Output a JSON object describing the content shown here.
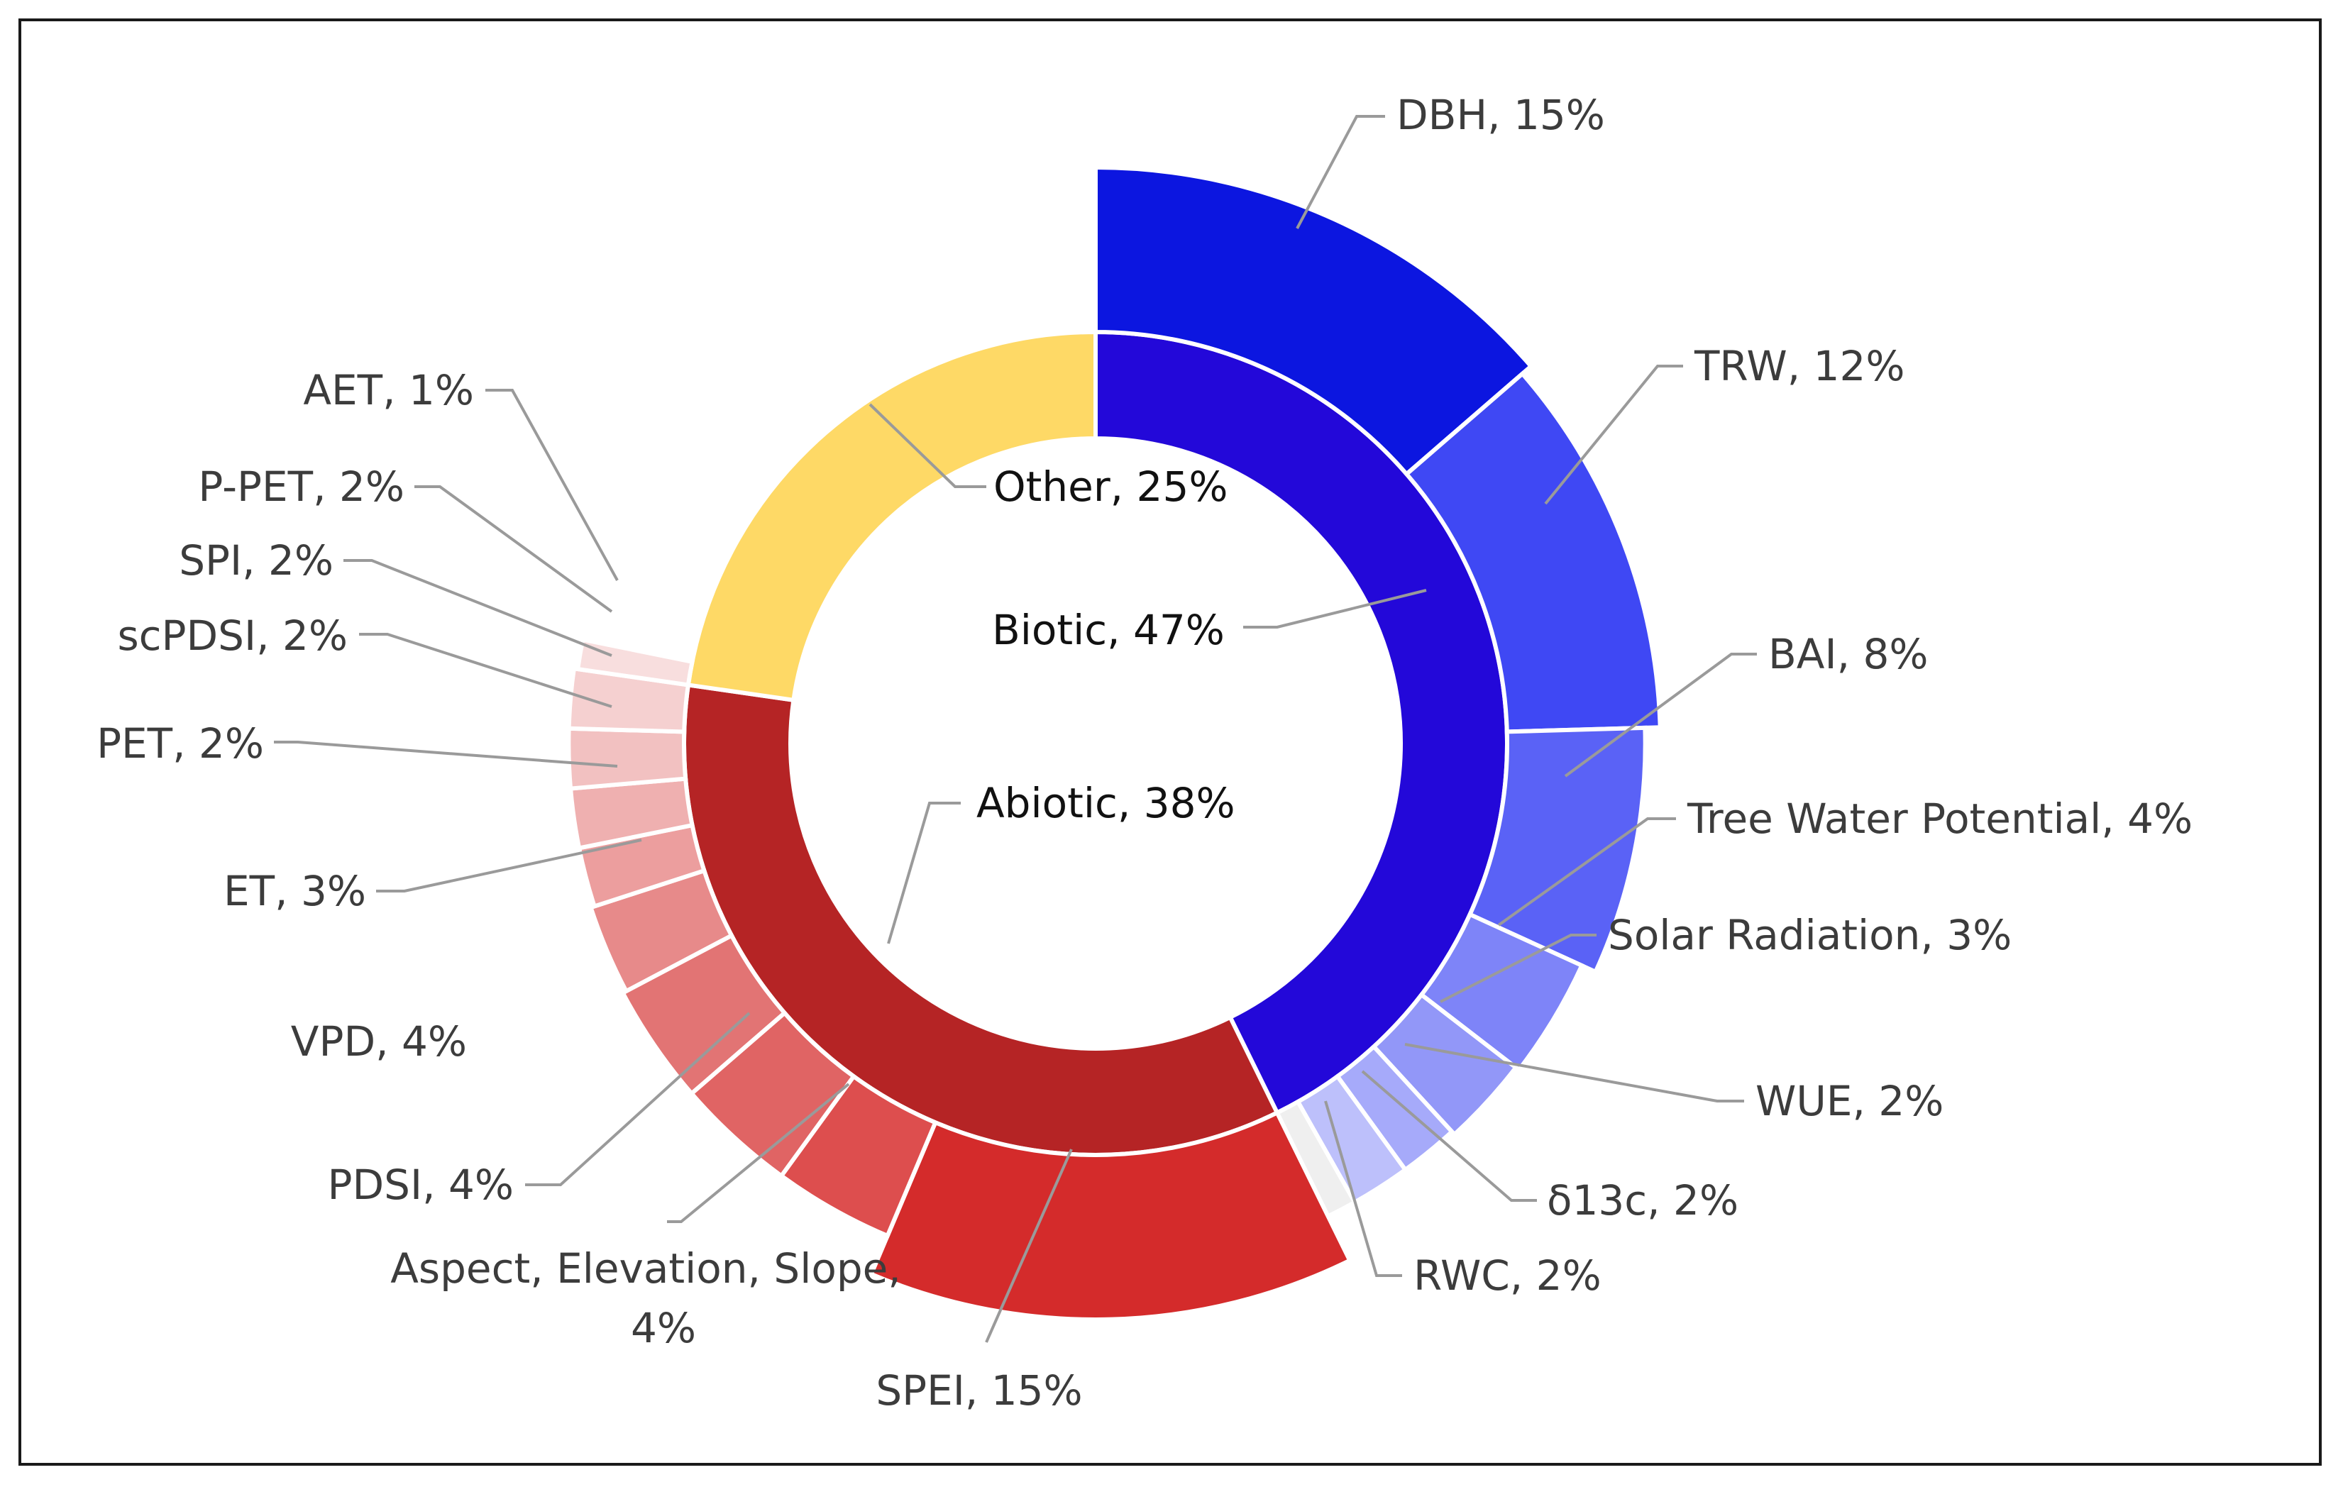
{
  "chart_data": {
    "type": "sunburst",
    "title": "",
    "unit": "%",
    "inner_ring": [
      {
        "key": "biotic",
        "name": "Biotic",
        "value": 47,
        "color": "#2308d9"
      },
      {
        "key": "abiotic",
        "name": "Abiotic",
        "value": 38,
        "color": "#b52425"
      },
      {
        "key": "other",
        "name": "Other",
        "value": 25,
        "color": "#fed966"
      }
    ],
    "outer_ring": [
      {
        "key": "dbh",
        "name": "DBH",
        "value": 15,
        "parent": "Biotic",
        "color": "#0c16e0"
      },
      {
        "key": "trw",
        "name": "TRW",
        "value": 12,
        "parent": "Biotic",
        "color": "#3f48f4"
      },
      {
        "key": "bai",
        "name": "BAI",
        "value": 8,
        "parent": "Biotic",
        "color": "#5a62f6"
      },
      {
        "key": "tree-water-potential",
        "name": "Tree Water Potential",
        "value": 4,
        "parent": "Biotic",
        "color": "#7e84f8"
      },
      {
        "key": "solar-radiation",
        "name": "Solar Radiation",
        "value": 3,
        "parent": "Biotic",
        "color": "#9297f8"
      },
      {
        "key": "wue",
        "name": "WUE",
        "value": 2,
        "parent": "Biotic",
        "color": "#a6aafa"
      },
      {
        "key": "d13c",
        "name": "δ13c",
        "value": 2,
        "parent": "Biotic",
        "color": "#bdc0fb"
      },
      {
        "key": "rwc",
        "name": "RWC",
        "value": 2,
        "parent": "Biotic",
        "color": "#efefef"
      },
      {
        "key": "spei",
        "name": "SPEI",
        "value": 15,
        "parent": "Abiotic",
        "color": "#d42b2b"
      },
      {
        "key": "aspect-elevation-slope",
        "name": "Aspect, Elevation, Slope,",
        "name2": "4%",
        "value": 4,
        "parent": "Abiotic",
        "color": "#dd4e4e"
      },
      {
        "key": "pdsi",
        "name": "PDSI",
        "value": 4,
        "parent": "Abiotic",
        "color": "#e06464"
      },
      {
        "key": "vpd",
        "name": "VPD",
        "value": 4,
        "parent": "Abiotic",
        "color": "#e27474"
      },
      {
        "key": "et",
        "name": "ET",
        "value": 3,
        "parent": "Abiotic",
        "color": "#e78a8a"
      },
      {
        "key": "pet",
        "name": "PET",
        "value": 2,
        "parent": "Abiotic",
        "color": "#ec9e9e"
      },
      {
        "key": "scpdsi",
        "name": "scPDSI",
        "value": 2,
        "parent": "Abiotic",
        "color": "#efb0b0"
      },
      {
        "key": "spi",
        "name": "SPI",
        "value": 2,
        "parent": "Abiotic",
        "color": "#f2c1c1"
      },
      {
        "key": "p-pet",
        "name": "P-PET",
        "value": 2,
        "parent": "Abiotic",
        "color": "#f5d0d0"
      },
      {
        "key": "aet",
        "name": "AET",
        "value": 1,
        "parent": "Abiotic",
        "color": "#f8dede"
      }
    ]
  },
  "labels": {
    "dbh": "DBH, 15%",
    "trw": "TRW, 12%",
    "bai": "BAI, 8%",
    "tree_water_potential": "Tree Water Potential, 4%",
    "solar_radiation": "Solar Radiation, 3%",
    "wue": "WUE, 2%",
    "d13c": "δ13c, 2%",
    "rwc": "RWC, 2%",
    "spei": "SPEI, 15%",
    "aspect_line1": "Aspect, Elevation, Slope,",
    "aspect_line2": "4%",
    "pdsi": "PDSI, 4%",
    "vpd": "VPD, 4%",
    "et": "ET, 3%",
    "pet": "PET, 2%",
    "scpdsi": "scPDSI, 2%",
    "spi": "SPI, 2%",
    "p_pet": "P-PET, 2%",
    "aet": "AET, 1%",
    "other": "Other, 25%",
    "biotic": "Biotic, 47%",
    "abiotic": "Abiotic, 38%"
  }
}
